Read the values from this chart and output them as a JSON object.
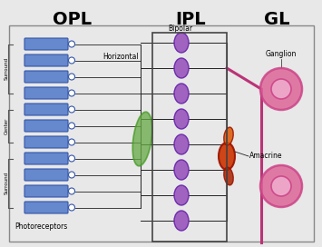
{
  "bg_color": "#e8e8e8",
  "title_opl": "OPL",
  "title_ipl": "IPL",
  "title_gl": "GL",
  "label_horizontal": "Horizontal",
  "label_bipolar": "Bipolar",
  "label_ganglion": "Ganglion",
  "label_amacrine": "Amacrine",
  "label_photoreceptors": "Photoreceptors",
  "label_surround_top": "Surround",
  "label_center": "Center",
  "label_surround_bot": "Surround",
  "photo_color": "#6688cc",
  "photo_dark": "#3355aa",
  "bipolar_color": "#9955bb",
  "horizontal_color": "#66aa44",
  "amacrine_color": "#cc3300",
  "amacrine_dark": "#991100",
  "ganglion_color": "#cc4488",
  "ganglion_fill": "#dd6699",
  "ganglion_inner": "#eeaacc",
  "connection_color": "#222222",
  "ipl_box_color": "#444444",
  "ganglion_line_color": "#bb3377"
}
